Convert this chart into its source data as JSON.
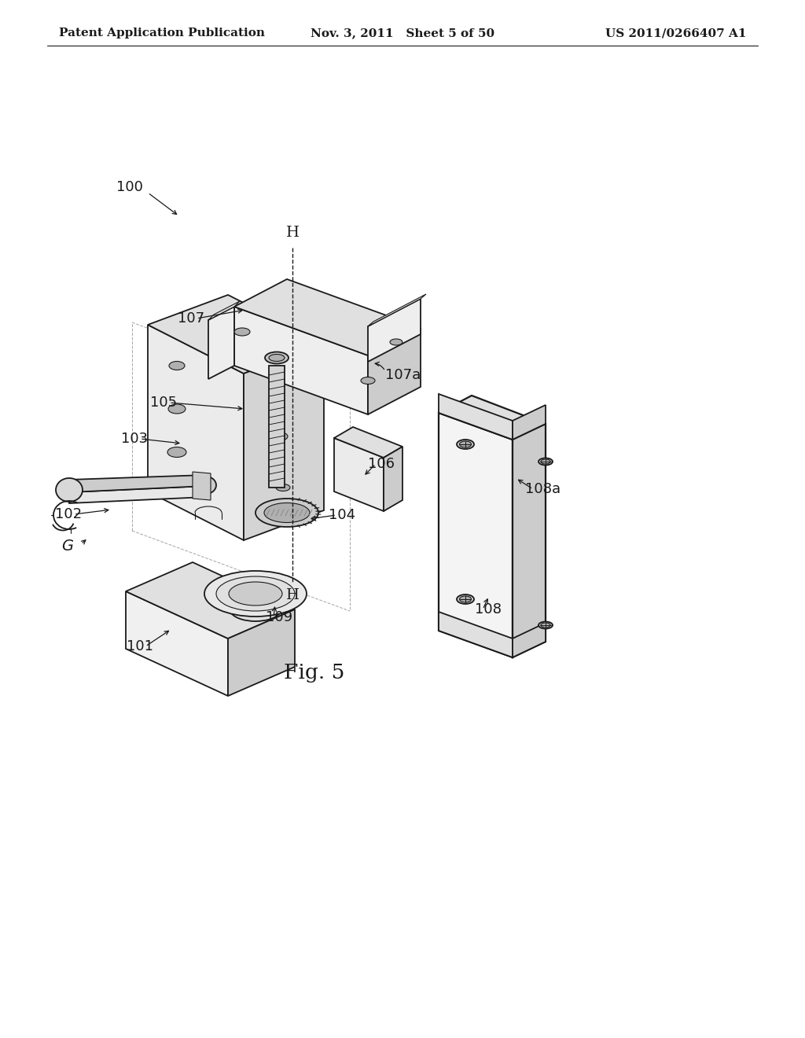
{
  "bg_color": "#ffffff",
  "line_color": "#1a1a1a",
  "patent_left": "Patent Application Publication",
  "patent_mid": "Nov. 3, 2011   Sheet 5 of 50",
  "patent_right": "US 2011/0266407 A1",
  "fig_label": "Fig. 5",
  "header_fs": 11,
  "label_fs": 13,
  "fig_fs": 19,
  "colors": {
    "face_light": "#f2f2f2",
    "face_mid": "#e0e0e0",
    "face_dark": "#cccccc",
    "face_darker": "#b0b0b0",
    "edge": "#1a1a1a"
  }
}
